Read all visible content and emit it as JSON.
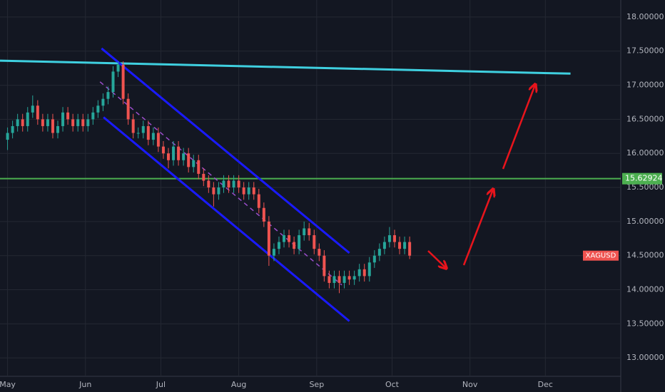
{
  "chart_data": {
    "type": "candlestick",
    "symbol": "XAGUSD",
    "up_color": "#26a69a",
    "down_color": "#ef5350",
    "grid": true,
    "xlim": [
      -3,
      244
    ],
    "ylim": [
      12.73,
      18.25
    ],
    "xticks": [
      {
        "value": 0,
        "label": "May"
      },
      {
        "value": 31,
        "label": "Jun"
      },
      {
        "value": 61,
        "label": "Jul"
      },
      {
        "value": 92,
        "label": "Aug"
      },
      {
        "value": 123,
        "label": "Sep"
      },
      {
        "value": 153,
        "label": "Oct"
      },
      {
        "value": 184,
        "label": "Nov"
      },
      {
        "value": 214,
        "label": "Dec"
      }
    ],
    "yticks": [
      {
        "value": 13,
        "label": "13.00000"
      },
      {
        "value": 13.5,
        "label": "13.50000"
      },
      {
        "value": 14,
        "label": "14.00000"
      },
      {
        "value": 14.5,
        "label": "14.50000"
      },
      {
        "value": 15,
        "label": "15.00000"
      },
      {
        "value": 15.5,
        "label": "15.50000"
      },
      {
        "value": 16,
        "label": "16.00000"
      },
      {
        "value": 16.5,
        "label": "16.50000"
      },
      {
        "value": 17,
        "label": "17.00000"
      },
      {
        "value": 17.5,
        "label": "17.50000"
      },
      {
        "value": 18,
        "label": "18.00000"
      }
    ],
    "x": [
      0,
      2,
      4,
      6,
      8,
      10,
      12,
      14,
      16,
      18,
      20,
      22,
      24,
      26,
      28,
      30,
      32,
      34,
      36,
      38,
      40,
      42,
      44,
      46,
      48,
      50,
      52,
      54,
      56,
      58,
      60,
      62,
      64,
      66,
      68,
      70,
      72,
      74,
      76,
      78,
      80,
      82,
      84,
      86,
      88,
      90,
      92,
      94,
      96,
      98,
      100,
      102,
      104,
      106,
      108,
      110,
      112,
      114,
      116,
      118,
      120,
      122,
      124,
      126,
      128,
      130,
      132,
      134,
      136,
      138,
      140,
      142,
      144,
      146,
      148,
      150,
      152,
      154,
      156,
      158,
      160
    ],
    "open": [
      16.2,
      16.3,
      16.4,
      16.5,
      16.4,
      16.6,
      16.7,
      16.5,
      16.4,
      16.5,
      16.3,
      16.4,
      16.6,
      16.5,
      16.4,
      16.5,
      16.4,
      16.5,
      16.6,
      16.7,
      16.8,
      16.9,
      17.2,
      17.3,
      16.8,
      16.5,
      16.3,
      16.3,
      16.4,
      16.2,
      16.3,
      16.1,
      16.0,
      15.9,
      16.1,
      15.9,
      16.0,
      15.8,
      15.9,
      15.7,
      15.6,
      15.5,
      15.4,
      15.5,
      15.6,
      15.5,
      15.6,
      15.5,
      15.4,
      15.5,
      15.4,
      15.2,
      15.0,
      14.5,
      14.6,
      14.7,
      14.8,
      14.7,
      14.6,
      14.8,
      14.9,
      14.8,
      14.6,
      14.5,
      14.2,
      14.1,
      14.2,
      14.1,
      14.2,
      14.15,
      14.2,
      14.3,
      14.2,
      14.4,
      14.5,
      14.6,
      14.7,
      14.8,
      14.7,
      14.6,
      14.7
    ],
    "high": [
      16.38,
      16.48,
      16.58,
      16.58,
      16.68,
      16.85,
      16.78,
      16.58,
      16.58,
      16.58,
      16.48,
      16.68,
      16.68,
      16.58,
      16.58,
      16.58,
      16.58,
      16.68,
      16.78,
      16.88,
      16.98,
      17.28,
      17.35,
      17.35,
      16.88,
      16.58,
      16.38,
      16.48,
      16.48,
      16.38,
      16.38,
      16.18,
      16.08,
      16.18,
      16.18,
      16.08,
      16.08,
      15.98,
      15.98,
      15.78,
      15.68,
      15.58,
      15.58,
      15.68,
      15.68,
      15.68,
      15.68,
      15.58,
      15.58,
      15.58,
      15.48,
      15.28,
      15.08,
      14.68,
      14.78,
      14.88,
      14.88,
      14.78,
      14.88,
      15.0,
      14.98,
      14.88,
      14.68,
      14.58,
      14.28,
      14.28,
      14.28,
      14.28,
      14.28,
      14.28,
      14.38,
      14.38,
      14.48,
      14.58,
      14.68,
      14.78,
      14.92,
      14.88,
      14.78,
      14.78,
      14.78
    ],
    "low": [
      16.05,
      16.22,
      16.32,
      16.32,
      16.32,
      16.52,
      16.42,
      16.32,
      16.32,
      16.22,
      16.22,
      16.32,
      16.42,
      16.32,
      16.32,
      16.32,
      16.32,
      16.42,
      16.52,
      16.62,
      16.72,
      16.82,
      17.12,
      16.72,
      16.42,
      16.22,
      16.22,
      16.22,
      16.12,
      16.12,
      16.02,
      15.92,
      15.78,
      15.82,
      15.82,
      15.82,
      15.72,
      15.72,
      15.62,
      15.52,
      15.42,
      15.22,
      15.32,
      15.42,
      15.42,
      15.42,
      15.42,
      15.32,
      15.32,
      15.32,
      15.12,
      14.92,
      14.35,
      14.42,
      14.52,
      14.62,
      14.62,
      14.52,
      14.52,
      14.72,
      14.72,
      14.52,
      14.42,
      14.12,
      14.02,
      14.02,
      13.95,
      14.02,
      14.07,
      14.07,
      14.12,
      14.12,
      14.12,
      14.32,
      14.42,
      14.52,
      14.62,
      14.62,
      14.52,
      14.52,
      14.45
    ],
    "close": [
      16.3,
      16.4,
      16.5,
      16.4,
      16.6,
      16.7,
      16.5,
      16.4,
      16.5,
      16.3,
      16.4,
      16.6,
      16.5,
      16.4,
      16.5,
      16.4,
      16.5,
      16.6,
      16.7,
      16.8,
      16.9,
      17.2,
      17.3,
      16.8,
      16.5,
      16.3,
      16.3,
      16.4,
      16.2,
      16.3,
      16.1,
      16.0,
      15.9,
      16.1,
      15.9,
      16.0,
      15.8,
      15.9,
      15.7,
      15.6,
      15.5,
      15.4,
      15.5,
      15.6,
      15.5,
      15.6,
      15.5,
      15.4,
      15.5,
      15.4,
      15.2,
      15.0,
      14.5,
      14.6,
      14.7,
      14.8,
      14.7,
      14.6,
      14.8,
      14.9,
      14.8,
      14.6,
      14.5,
      14.2,
      14.1,
      14.2,
      14.1,
      14.2,
      14.15,
      14.2,
      14.3,
      14.2,
      14.4,
      14.5,
      14.6,
      14.7,
      14.8,
      14.7,
      14.6,
      14.7,
      14.5
    ],
    "hline": {
      "value": 15.62924,
      "color": "#4caf50"
    },
    "trendlines": [
      {
        "color": "#3fd0e0",
        "x": [
          -3,
          224
        ],
        "y": [
          17.36,
          17.17
        ],
        "dash": false
      },
      {
        "color": "#1a1aff",
        "x": [
          37.4,
          136
        ],
        "y": [
          17.54,
          14.54
        ],
        "dash": false
      },
      {
        "color": "#1a1aff",
        "x": [
          38.2,
          136
        ],
        "y": [
          16.53,
          13.54
        ],
        "dash": false
      },
      {
        "color": "#9c4dcc",
        "x": [
          36.8,
          133
        ],
        "y": [
          17.05,
          14.07
        ],
        "dash": true
      }
    ]
  }
}
